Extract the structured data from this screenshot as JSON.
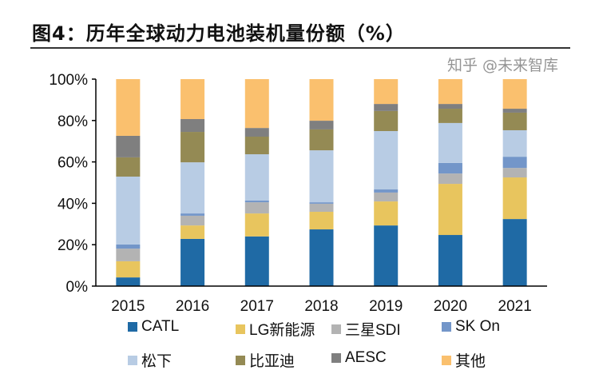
{
  "title": "图4：历年全球动力电池装机量份额（%）",
  "watermark": "知乎 @未来智库",
  "chart_data": {
    "type": "bar",
    "stacked": true,
    "categories": [
      "2015",
      "2016",
      "2017",
      "2018",
      "2019",
      "2020",
      "2021"
    ],
    "ylim": [
      0,
      100
    ],
    "yticks": [
      "0%",
      "20%",
      "40%",
      "60%",
      "80%",
      "100%"
    ],
    "grid": false,
    "legend_placement": "bottom",
    "series": [
      {
        "name": "CATL",
        "color": "#1f6aa5",
        "values": [
          4.2,
          22.8,
          24.0,
          27.4,
          29.3,
          24.7,
          32.4
        ]
      },
      {
        "name": "LG新能源",
        "color": "#e8c55e",
        "values": [
          7.8,
          6.5,
          11.1,
          8.5,
          11.6,
          24.7,
          20.1
        ]
      },
      {
        "name": "三星SDI",
        "color": "#b3b3b3",
        "values": [
          6.1,
          4.7,
          5.4,
          3.9,
          4.3,
          5.0,
          4.6
        ]
      },
      {
        "name": "SK On",
        "color": "#7396c9",
        "values": [
          2.0,
          1.1,
          0.8,
          0.7,
          1.5,
          5.1,
          5.4
        ]
      },
      {
        "name": "松下",
        "color": "#b8cce4",
        "values": [
          32.8,
          24.7,
          22.4,
          25.1,
          28.2,
          19.3,
          12.8
        ]
      },
      {
        "name": "比亚迪",
        "color": "#948a54",
        "values": [
          9.3,
          14.7,
          8.5,
          10.1,
          9.7,
          6.9,
          8.5
        ]
      },
      {
        "name": "AESC",
        "color": "#7f7f7f",
        "values": [
          10.4,
          6.2,
          4.2,
          4.2,
          3.4,
          2.3,
          1.9
        ]
      },
      {
        "name": "其他",
        "color": "#fac06e",
        "values": [
          27.4,
          19.3,
          23.6,
          20.1,
          12.0,
          12.0,
          14.3
        ]
      }
    ]
  }
}
